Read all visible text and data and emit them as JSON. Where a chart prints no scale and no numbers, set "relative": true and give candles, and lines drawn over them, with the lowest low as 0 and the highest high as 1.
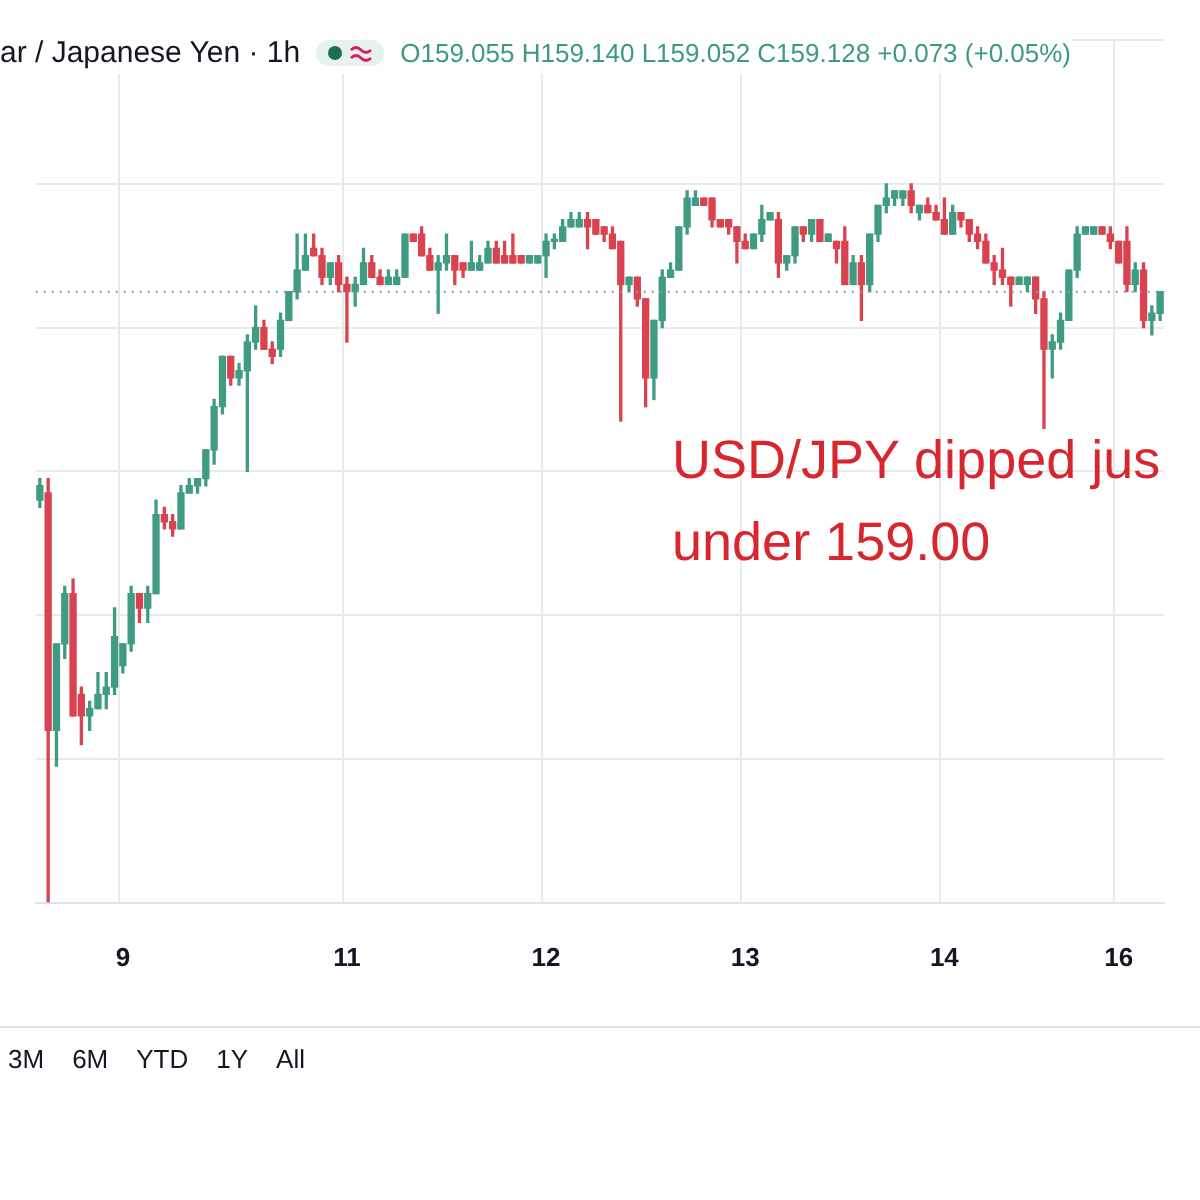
{
  "chart_data": {
    "type": "candlestick",
    "title": "ar / Japanese Yen · 1h",
    "relative": true,
    "grid": true,
    "annotations": [
      "O159.055 H159.140 L159.052 C159.128 +0.073 (+0.05%)",
      "USD/JPY dipped jus\nunder 159.00",
      "3M",
      "6M",
      "YTD",
      "1Y",
      "All"
    ],
    "ref_lines": [
      {
        "axis": "y",
        "value": 0.85,
        "color": "#9598a1",
        "line_style": "dotted"
      }
    ],
    "categories": [
      null,
      null,
      null,
      null,
      null,
      null,
      null,
      null,
      null,
      null,
      "9",
      null,
      null,
      null,
      null,
      null,
      null,
      null,
      null,
      null,
      null,
      null,
      null,
      null,
      null,
      null,
      null,
      null,
      null,
      null,
      null,
      null,
      null,
      null,
      null,
      null,
      null,
      "11",
      null,
      null,
      null,
      null,
      null,
      null,
      null,
      null,
      null,
      null,
      null,
      null,
      null,
      null,
      null,
      null,
      null,
      null,
      null,
      null,
      null,
      null,
      null,
      "12",
      null,
      null,
      null,
      null,
      null,
      null,
      null,
      null,
      null,
      null,
      null,
      null,
      null,
      null,
      null,
      null,
      null,
      null,
      null,
      null,
      null,
      null,
      null,
      "13",
      null,
      null,
      null,
      null,
      null,
      null,
      null,
      null,
      null,
      null,
      null,
      null,
      null,
      null,
      null,
      null,
      null,
      null,
      null,
      null,
      null,
      null,
      null,
      "14",
      null,
      null,
      null,
      null,
      null,
      null,
      null,
      null,
      null,
      null,
      null,
      null,
      null,
      null,
      null,
      null,
      null,
      null,
      null,
      null,
      "16",
      null,
      null,
      null,
      null,
      null
    ],
    "ohlc": [
      [
        0.56,
        0.59,
        0.55,
        0.58
      ],
      [
        0.57,
        0.59,
        0,
        0.24
      ],
      [
        0.24,
        0.36,
        0.19,
        0.36
      ],
      [
        0.36,
        0.44,
        0.34,
        0.43
      ],
      [
        0.43,
        0.45,
        0.26,
        0.26
      ],
      [
        0.29,
        0.3,
        0.22,
        0.26
      ],
      [
        0.26,
        0.28,
        0.24,
        0.27
      ],
      [
        0.27,
        0.32,
        0.27,
        0.29
      ],
      [
        0.29,
        0.32,
        0.27,
        0.3
      ],
      [
        0.3,
        0.41,
        0.29,
        0.37
      ],
      [
        0.33,
        0.36,
        0.32,
        0.36
      ],
      [
        0.36,
        0.44,
        0.35,
        0.43
      ],
      [
        0.43,
        0.43,
        0.39,
        0.41
      ],
      [
        0.41,
        0.44,
        0.39,
        0.43
      ],
      [
        0.43,
        0.56,
        0.43,
        0.54
      ],
      [
        0.54,
        0.55,
        0.52,
        0.53
      ],
      [
        0.53,
        0.54,
        0.51,
        0.52
      ],
      [
        0.52,
        0.58,
        0.52,
        0.57
      ],
      [
        0.57,
        0.59,
        0.57,
        0.58
      ],
      [
        0.58,
        0.59,
        0.57,
        0.59
      ],
      [
        0.59,
        0.63,
        0.58,
        0.63
      ],
      [
        0.63,
        0.7,
        0.61,
        0.69
      ],
      [
        0.69,
        0.76,
        0.68,
        0.76
      ],
      [
        0.76,
        0.76,
        0.72,
        0.73
      ],
      [
        0.73,
        0.75,
        0.72,
        0.74
      ],
      [
        0.74,
        0.79,
        0.6,
        0.78
      ],
      [
        0.78,
        0.83,
        0.77,
        0.8
      ],
      [
        0.8,
        0.81,
        0.77,
        0.77
      ],
      [
        0.77,
        0.78,
        0.75,
        0.76
      ],
      [
        0.77,
        0.82,
        0.76,
        0.81
      ],
      [
        0.81,
        0.85,
        0.81,
        0.85
      ],
      [
        0.85,
        0.93,
        0.84,
        0.88
      ],
      [
        0.88,
        0.93,
        0.88,
        0.9
      ],
      [
        0.91,
        0.93,
        0.9,
        0.9
      ],
      [
        0.9,
        0.91,
        0.86,
        0.87
      ],
      [
        0.87,
        0.89,
        0.86,
        0.89
      ],
      [
        0.89,
        0.9,
        0.85,
        0.86
      ],
      [
        0.86,
        0.87,
        0.78,
        0.85
      ],
      [
        0.85,
        0.87,
        0.83,
        0.86
      ],
      [
        0.86,
        0.91,
        0.86,
        0.89
      ],
      [
        0.89,
        0.9,
        0.87,
        0.87
      ],
      [
        0.87,
        0.88,
        0.86,
        0.86
      ],
      [
        0.86,
        0.88,
        0.86,
        0.87
      ],
      [
        0.86,
        0.88,
        0.86,
        0.87
      ],
      [
        0.87,
        0.93,
        0.87,
        0.93
      ],
      [
        0.93,
        0.93,
        0.92,
        0.92
      ],
      [
        0.93,
        0.94,
        0.9,
        0.9
      ],
      [
        0.9,
        0.91,
        0.88,
        0.88
      ],
      [
        0.88,
        0.9,
        0.82,
        0.89
      ],
      [
        0.89,
        0.93,
        0.88,
        0.9
      ],
      [
        0.9,
        0.9,
        0.86,
        0.88
      ],
      [
        0.89,
        0.89,
        0.87,
        0.88
      ],
      [
        0.88,
        0.92,
        0.88,
        0.89
      ],
      [
        0.88,
        0.9,
        0.88,
        0.89
      ],
      [
        0.89,
        0.92,
        0.89,
        0.91
      ],
      [
        0.91,
        0.92,
        0.89,
        0.89
      ],
      [
        0.9,
        0.92,
        0.89,
        0.89
      ],
      [
        0.9,
        0.93,
        0.89,
        0.89
      ],
      [
        0.9,
        0.9,
        0.89,
        0.89
      ],
      [
        0.89,
        0.9,
        0.89,
        0.9
      ],
      [
        0.89,
        0.9,
        0.89,
        0.9
      ],
      [
        0.9,
        0.93,
        0.87,
        0.92
      ],
      [
        0.92,
        0.93,
        0.91,
        0.92
      ],
      [
        0.92,
        0.95,
        0.92,
        0.94
      ],
      [
        0.94,
        0.96,
        0.94,
        0.95
      ],
      [
        0.94,
        0.96,
        0.94,
        0.95
      ],
      [
        0.95,
        0.96,
        0.91,
        0.94
      ],
      [
        0.95,
        0.95,
        0.93,
        0.93
      ],
      [
        0.94,
        0.94,
        0.92,
        0.93
      ],
      [
        0.93,
        0.94,
        0.91,
        0.91
      ],
      [
        0.92,
        0.92,
        0.67,
        0.86
      ],
      [
        0.86,
        0.87,
        0.85,
        0.87
      ],
      [
        0.87,
        0.87,
        0.83,
        0.84
      ],
      [
        0.84,
        0.84,
        0.69,
        0.73
      ],
      [
        0.73,
        0.81,
        0.7,
        0.81
      ],
      [
        0.81,
        0.88,
        0.8,
        0.87
      ],
      [
        0.87,
        0.89,
        0.87,
        0.88
      ],
      [
        0.88,
        0.94,
        0.88,
        0.94
      ],
      [
        0.94,
        0.99,
        0.93,
        0.98
      ],
      [
        0.97,
        0.99,
        0.97,
        0.98
      ],
      [
        0.98,
        0.98,
        0.97,
        0.97
      ],
      [
        0.98,
        0.98,
        0.94,
        0.95
      ],
      [
        0.95,
        0.95,
        0.94,
        0.94
      ],
      [
        0.95,
        0.95,
        0.93,
        0.94
      ],
      [
        0.94,
        0.94,
        0.89,
        0.92
      ],
      [
        0.92,
        0.93,
        0.91,
        0.91
      ],
      [
        0.91,
        0.93,
        0.91,
        0.93
      ],
      [
        0.93,
        0.97,
        0.92,
        0.95
      ],
      [
        0.95,
        0.96,
        0.95,
        0.96
      ],
      [
        0.95,
        0.96,
        0.87,
        0.89
      ],
      [
        0.89,
        0.9,
        0.88,
        0.9
      ],
      [
        0.9,
        0.94,
        0.89,
        0.94
      ],
      [
        0.94,
        0.94,
        0.92,
        0.93
      ],
      [
        0.93,
        0.95,
        0.92,
        0.95
      ],
      [
        0.95,
        0.95,
        0.92,
        0.92
      ],
      [
        0.92,
        0.93,
        0.92,
        0.93
      ],
      [
        0.92,
        0.92,
        0.89,
        0.91
      ],
      [
        0.92,
        0.94,
        0.86,
        0.86
      ],
      [
        0.86,
        0.9,
        0.86,
        0.89
      ],
      [
        0.89,
        0.9,
        0.81,
        0.86
      ],
      [
        0.86,
        0.93,
        0.85,
        0.93
      ],
      [
        0.93,
        0.97,
        0.92,
        0.97
      ],
      [
        0.97,
        1.0,
        0.96,
        0.98
      ],
      [
        0.98,
        0.99,
        0.97,
        0.99
      ],
      [
        0.98,
        0.99,
        0.97,
        0.99
      ],
      [
        0.99,
        1.0,
        0.96,
        0.97
      ],
      [
        0.96,
        0.97,
        0.95,
        0.97
      ],
      [
        0.97,
        0.98,
        0.96,
        0.96
      ],
      [
        0.96,
        0.97,
        0.95,
        0.95
      ],
      [
        0.95,
        0.98,
        0.93,
        0.93
      ],
      [
        0.93,
        0.97,
        0.93,
        0.96
      ],
      [
        0.96,
        0.96,
        0.94,
        0.95
      ],
      [
        0.95,
        0.95,
        0.92,
        0.93
      ],
      [
        0.93,
        0.94,
        0.91,
        0.92
      ],
      [
        0.92,
        0.93,
        0.89,
        0.89
      ],
      [
        0.89,
        0.9,
        0.86,
        0.88
      ],
      [
        0.88,
        0.91,
        0.86,
        0.87
      ],
      [
        0.87,
        0.87,
        0.83,
        0.86
      ],
      [
        0.86,
        0.87,
        0.86,
        0.87
      ],
      [
        0.86,
        0.87,
        0.85,
        0.87
      ],
      [
        0.87,
        0.87,
        0.82,
        0.84
      ],
      [
        0.84,
        0.85,
        0.66,
        0.77
      ],
      [
        0.77,
        0.79,
        0.73,
        0.78
      ],
      [
        0.78,
        0.82,
        0.77,
        0.81
      ],
      [
        0.81,
        0.88,
        0.81,
        0.88
      ],
      [
        0.88,
        0.94,
        0.87,
        0.93
      ],
      [
        0.93,
        0.94,
        0.93,
        0.94
      ],
      [
        0.93,
        0.94,
        0.93,
        0.94
      ],
      [
        0.94,
        0.94,
        0.93,
        0.93
      ],
      [
        0.93,
        0.94,
        0.91,
        0.92
      ],
      [
        0.92,
        0.92,
        0.89,
        0.89
      ],
      [
        0.92,
        0.94,
        0.85,
        0.86
      ],
      [
        0.86,
        0.89,
        0.85,
        0.88
      ],
      [
        0.88,
        0.89,
        0.8,
        0.81
      ],
      [
        0.81,
        0.83,
        0.79,
        0.82
      ],
      [
        0.82,
        0.85,
        0.81,
        0.85
      ]
    ]
  }
}
